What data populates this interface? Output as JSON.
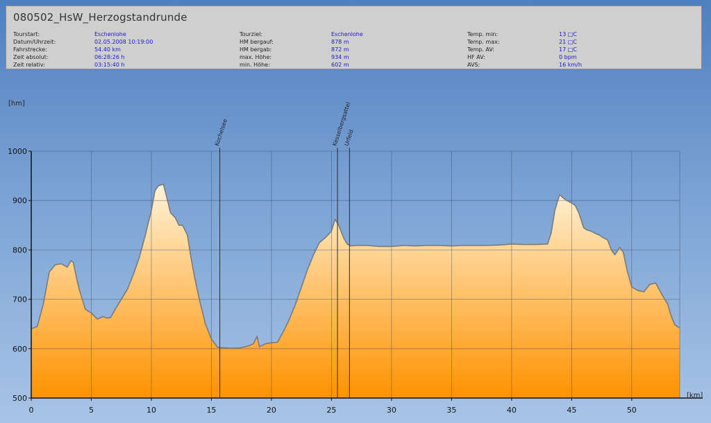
{
  "header": {
    "title": "080502_HsW_Herzogstandrunde",
    "stats": [
      {
        "label": "Tourstart:",
        "value": "Eschenlohe"
      },
      {
        "label": "Datum/Uhrzeit:",
        "value": "02.05.2008 10:19:00"
      },
      {
        "label": "Fahrstrecke:",
        "value": "54.40 km"
      },
      {
        "label": "Zeit absolut:",
        "value": "06:28:26 h"
      },
      {
        "label": "Zeit relativ:",
        "value": "03:15:40 h"
      },
      {
        "label": "Tourziel:",
        "value": "Eschenlohe"
      },
      {
        "label": "HM bergauf:",
        "value": "878 m"
      },
      {
        "label": "HM bergab:",
        "value": "872 m"
      },
      {
        "label": "max. Höhe:",
        "value": "934 m"
      },
      {
        "label": "min. Höhe:",
        "value": "602 m"
      },
      {
        "label": "Temp. min:",
        "value": "13 □C"
      },
      {
        "label": "Temp. max:",
        "value": "21 □C"
      },
      {
        "label": "Temp. AV:",
        "value": "17 □C"
      },
      {
        "label": "HF AV:",
        "value": "0 bpm"
      },
      {
        "label": "AVS:",
        "value": "16 km/h"
      }
    ]
  },
  "colors": {
    "fill_top": "#fff3d8",
    "fill_bottom": "#ff9200",
    "outline": "#7a7a7a",
    "grid": "#3a4a6a"
  },
  "chart_data": {
    "type": "area",
    "xlabel": "[km]",
    "ylabel": "[hm]",
    "xlim": [
      0,
      54
    ],
    "ylim": [
      500,
      1000
    ],
    "x_ticks": [
      0,
      5,
      10,
      15,
      20,
      25,
      30,
      35,
      40,
      45,
      50
    ],
    "y_ticks": [
      500,
      600,
      700,
      800,
      900,
      1000
    ],
    "grid": true,
    "markers": [
      {
        "label": "Kochelsee",
        "x": 15.7
      },
      {
        "label": "Kesselbergsattel",
        "x": 25.5
      },
      {
        "label": "Urfeld",
        "x": 26.5
      }
    ],
    "series": [
      {
        "x": [
          0,
          0.5,
          1,
          1.5,
          2,
          2.5,
          3,
          3.3,
          3.5,
          3.8,
          4,
          4.5,
          5,
          5.5,
          6,
          6.3,
          6.6,
          7,
          7.5,
          8,
          8.5,
          9,
          9.5,
          10,
          10.3,
          10.6,
          11,
          11.3,
          11.6,
          12,
          12.3,
          12.6,
          13,
          13.3,
          13.6,
          14,
          14.5,
          15,
          15.5,
          15.8,
          16,
          16.5,
          17,
          17.5,
          18,
          18.5,
          18.8,
          19,
          19.5,
          20,
          20.5,
          21,
          21.5,
          22,
          22.5,
          23,
          23.5,
          24,
          24.5,
          25,
          25.3,
          25.6,
          26,
          26.3,
          26.6,
          27,
          28,
          29,
          30,
          31,
          32,
          33,
          34,
          35,
          36,
          37,
          38,
          39,
          40,
          41,
          42,
          43,
          43.3,
          43.6,
          44,
          44.3,
          44.6,
          45,
          45.3,
          45.6,
          46,
          46.3,
          46.6,
          47,
          47.3,
          47.6,
          48,
          48.3,
          48.6,
          49,
          49.3,
          49.6,
          50,
          50.5,
          51,
          51.5,
          52,
          52.5,
          53,
          53.3,
          53.6,
          54
        ],
        "y": [
          640,
          645,
          690,
          755,
          770,
          772,
          765,
          778,
          775,
          740,
          720,
          680,
          672,
          660,
          665,
          662,
          663,
          680,
          700,
          720,
          750,
          785,
          830,
          880,
          920,
          930,
          933,
          905,
          875,
          865,
          850,
          850,
          830,
          785,
          745,
          700,
          650,
          620,
          603,
          602,
          602,
          601,
          601,
          602,
          605,
          610,
          625,
          604,
          610,
          612,
          613,
          635,
          660,
          690,
          725,
          760,
          790,
          815,
          825,
          838,
          862,
          850,
          825,
          812,
          808,
          809,
          809,
          807,
          807,
          809,
          808,
          809,
          809,
          808,
          809,
          809,
          809,
          810,
          812,
          811,
          811,
          812,
          835,
          880,
          912,
          905,
          900,
          895,
          890,
          875,
          845,
          840,
          838,
          833,
          830,
          825,
          820,
          800,
          790,
          805,
          795,
          760,
          725,
          718,
          715,
          730,
          733,
          710,
          690,
          665,
          648,
          642
        ]
      }
    ]
  }
}
